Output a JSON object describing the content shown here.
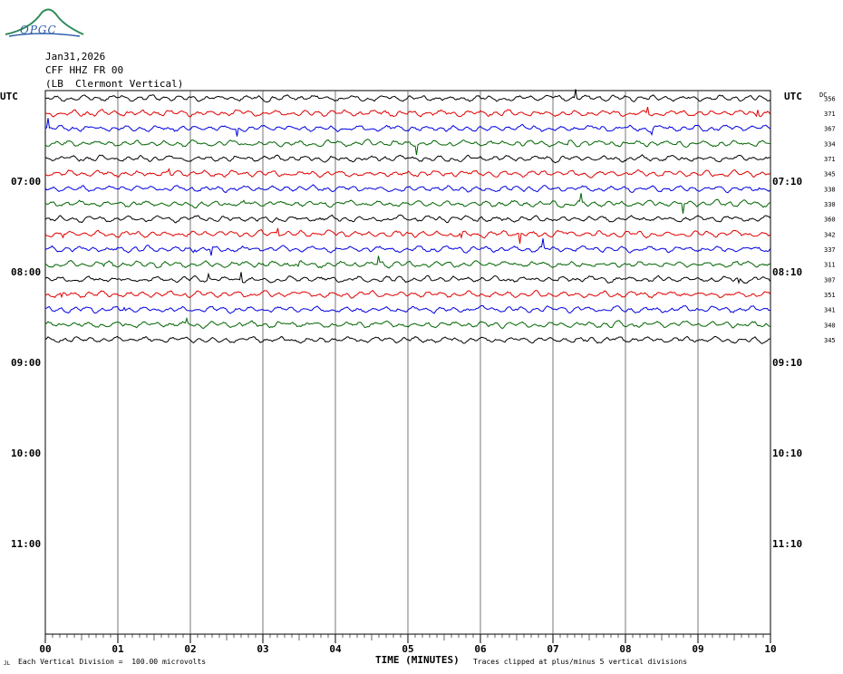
{
  "header": {
    "date": "Jan31,2026",
    "station": "CFF HHZ FR 00",
    "location": "(LB  Clermont Vertical)",
    "logo": "OPGC"
  },
  "footer": {
    "scale": "Each Vertical Division =  100.00 microvolts",
    "clip_note": "Traces clipped at plus/minus 5 vertical divisions",
    "corner": "JL"
  },
  "chart_data": {
    "type": "line",
    "title": "",
    "xlabel": "TIME (MINUTES)",
    "left_axis_label": "UTC",
    "right_axis_label": "UTC",
    "dc_label": "DC",
    "x_ticks": [
      "00",
      "01",
      "02",
      "03",
      "04",
      "05",
      "06",
      "07",
      "08",
      "09",
      "10"
    ],
    "xlim": [
      0,
      10
    ],
    "left_hour_labels": [
      "07:00",
      "08:00",
      "09:00",
      "10:00",
      "11:00"
    ],
    "right_hour_labels": [
      "07:10",
      "08:10",
      "09:10",
      "10:10",
      "11:10"
    ],
    "traces_per_hour": 6,
    "hour_rows": 6,
    "grid": "vertical lines each minute",
    "colors": [
      "#000000",
      "#e00000",
      "#0000e0",
      "#006400"
    ],
    "dc_values": [
      356,
      371,
      367,
      334,
      371,
      345,
      338,
      330,
      360,
      342,
      337,
      311,
      307,
      351,
      341,
      340,
      345
    ]
  }
}
